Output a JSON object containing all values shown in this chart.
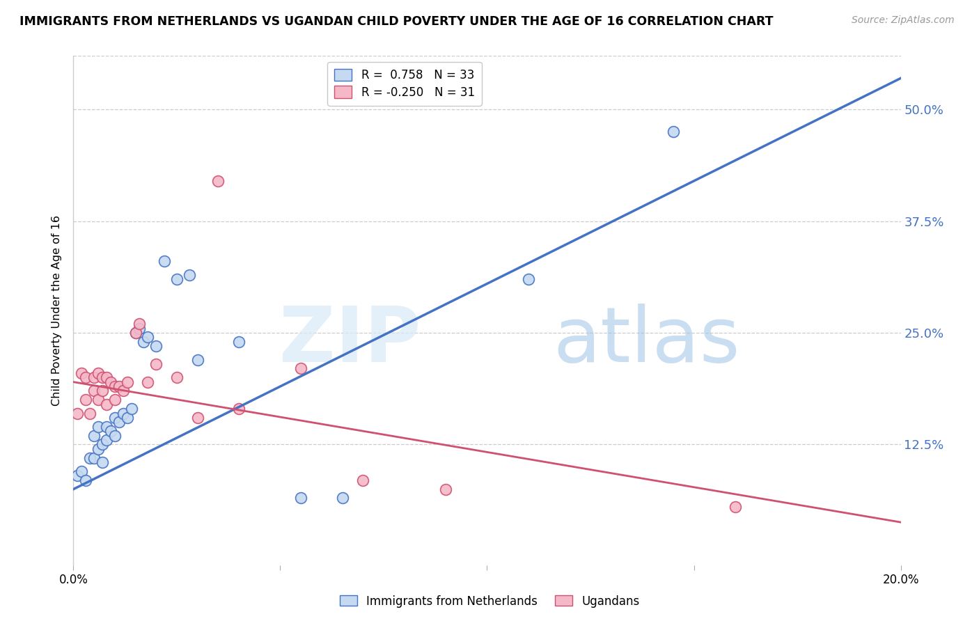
{
  "title": "IMMIGRANTS FROM NETHERLANDS VS UGANDAN CHILD POVERTY UNDER THE AGE OF 16 CORRELATION CHART",
  "source": "Source: ZipAtlas.com",
  "ylabel": "Child Poverty Under the Age of 16",
  "watermark_zip": "ZIP",
  "watermark_atlas": "atlas",
  "xlim": [
    0.0,
    0.2
  ],
  "ylim": [
    -0.01,
    0.56
  ],
  "yticks": [
    0.125,
    0.25,
    0.375,
    0.5
  ],
  "ytick_labels": [
    "12.5%",
    "25.0%",
    "37.5%",
    "50.0%"
  ],
  "xticks": [
    0.0,
    0.05,
    0.1,
    0.15,
    0.2
  ],
  "blue_R": 0.758,
  "blue_N": 33,
  "pink_R": -0.25,
  "pink_N": 31,
  "blue_fill_color": "#c5d9f0",
  "blue_edge_color": "#4472c4",
  "pink_fill_color": "#f4b8c8",
  "pink_edge_color": "#d05070",
  "legend_label_blue": "Immigrants from Netherlands",
  "legend_label_pink": "Ugandans",
  "blue_scatter_x": [
    0.001,
    0.002,
    0.003,
    0.004,
    0.005,
    0.005,
    0.006,
    0.006,
    0.007,
    0.007,
    0.008,
    0.008,
    0.009,
    0.01,
    0.01,
    0.011,
    0.012,
    0.013,
    0.014,
    0.015,
    0.016,
    0.017,
    0.018,
    0.02,
    0.022,
    0.025,
    0.028,
    0.03,
    0.04,
    0.055,
    0.065,
    0.11,
    0.145
  ],
  "blue_scatter_y": [
    0.09,
    0.095,
    0.085,
    0.11,
    0.11,
    0.135,
    0.12,
    0.145,
    0.105,
    0.125,
    0.13,
    0.145,
    0.14,
    0.135,
    0.155,
    0.15,
    0.16,
    0.155,
    0.165,
    0.25,
    0.255,
    0.24,
    0.245,
    0.235,
    0.33,
    0.31,
    0.315,
    0.22,
    0.24,
    0.065,
    0.065,
    0.31,
    0.475
  ],
  "pink_scatter_x": [
    0.001,
    0.002,
    0.003,
    0.003,
    0.004,
    0.005,
    0.005,
    0.006,
    0.006,
    0.007,
    0.007,
    0.008,
    0.008,
    0.009,
    0.01,
    0.01,
    0.011,
    0.012,
    0.013,
    0.015,
    0.016,
    0.018,
    0.02,
    0.025,
    0.03,
    0.035,
    0.04,
    0.055,
    0.07,
    0.09,
    0.16
  ],
  "pink_scatter_y": [
    0.16,
    0.205,
    0.175,
    0.2,
    0.16,
    0.185,
    0.2,
    0.175,
    0.205,
    0.185,
    0.2,
    0.17,
    0.2,
    0.195,
    0.19,
    0.175,
    0.19,
    0.185,
    0.195,
    0.25,
    0.26,
    0.195,
    0.215,
    0.2,
    0.155,
    0.42,
    0.165,
    0.21,
    0.085,
    0.075,
    0.055
  ],
  "blue_line_x0": 0.0,
  "blue_line_x1": 0.2,
  "blue_line_y0": 0.075,
  "blue_line_y1": 0.535,
  "pink_line_x0": 0.0,
  "pink_line_x1": 0.2,
  "pink_line_y0": 0.195,
  "pink_line_y1": 0.038,
  "bg_color": "#ffffff",
  "grid_color": "#cccccc",
  "right_tick_color": "#4472c4"
}
